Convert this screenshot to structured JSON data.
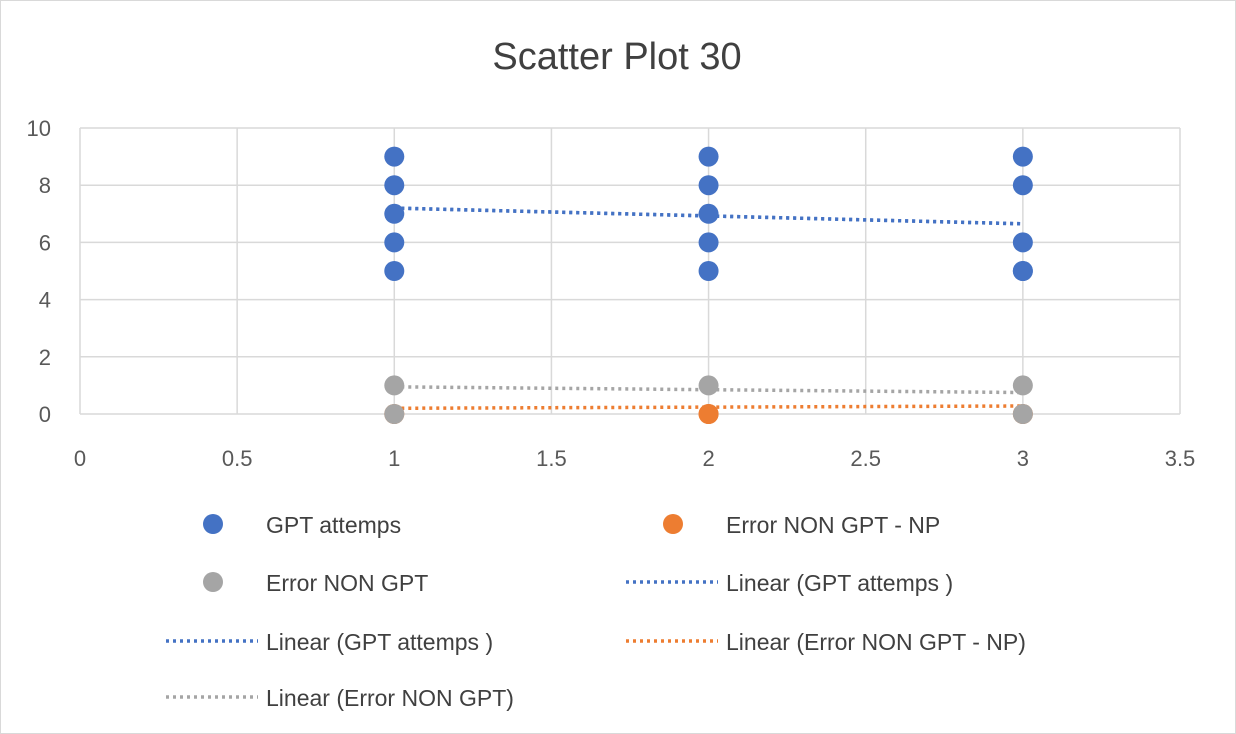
{
  "chart_data": {
    "type": "scatter",
    "title": "Scatter Plot 30",
    "xlabel": "",
    "ylabel": "",
    "xlim": [
      0,
      3.5
    ],
    "ylim": [
      0,
      10
    ],
    "x_ticks": [
      "0",
      "0.5",
      "1",
      "1.5",
      "2",
      "2.5",
      "3",
      "3.5"
    ],
    "y_ticks": [
      "0",
      "2",
      "4",
      "6",
      "8",
      "10"
    ],
    "grid": true,
    "legend_position": "bottom",
    "series": [
      {
        "name": "GPT attemps",
        "kind": "points",
        "color": "#4472C4",
        "x": [
          1,
          1,
          1,
          1,
          1,
          2,
          2,
          2,
          2,
          2,
          3,
          3,
          3,
          3,
          3
        ],
        "y": [
          9,
          8,
          7,
          6,
          5,
          9,
          8,
          7,
          6,
          5,
          9,
          8,
          6,
          5,
          5
        ]
      },
      {
        "name": "Error NON GPT - NP",
        "kind": "points",
        "color": "#ED7D31",
        "x": [
          1,
          2,
          2,
          3
        ],
        "y": [
          0,
          0,
          0,
          0
        ]
      },
      {
        "name": "Error NON GPT",
        "kind": "points",
        "color": "#A5A5A5",
        "x": [
          1,
          1,
          2,
          3,
          3
        ],
        "y": [
          1,
          0,
          1,
          1,
          0
        ]
      },
      {
        "name": "Linear (GPT attemps )",
        "kind": "trendline",
        "color": "#4472C4",
        "x": [
          1,
          3
        ],
        "y": [
          7.2,
          6.65
        ]
      },
      {
        "name": "Linear (GPT attemps )",
        "kind": "trendline",
        "color": "#4472C4",
        "x": [
          1,
          3
        ],
        "y": [
          7.2,
          6.65
        ]
      },
      {
        "name": "Linear (Error NON GPT - NP)",
        "kind": "trendline",
        "color": "#ED7D31",
        "x": [
          1,
          3
        ],
        "y": [
          0.2,
          0.28
        ]
      },
      {
        "name": "Linear (Error NON GPT)",
        "kind": "trendline",
        "color": "#A5A5A5",
        "x": [
          1,
          3
        ],
        "y": [
          0.95,
          0.75
        ]
      }
    ]
  }
}
